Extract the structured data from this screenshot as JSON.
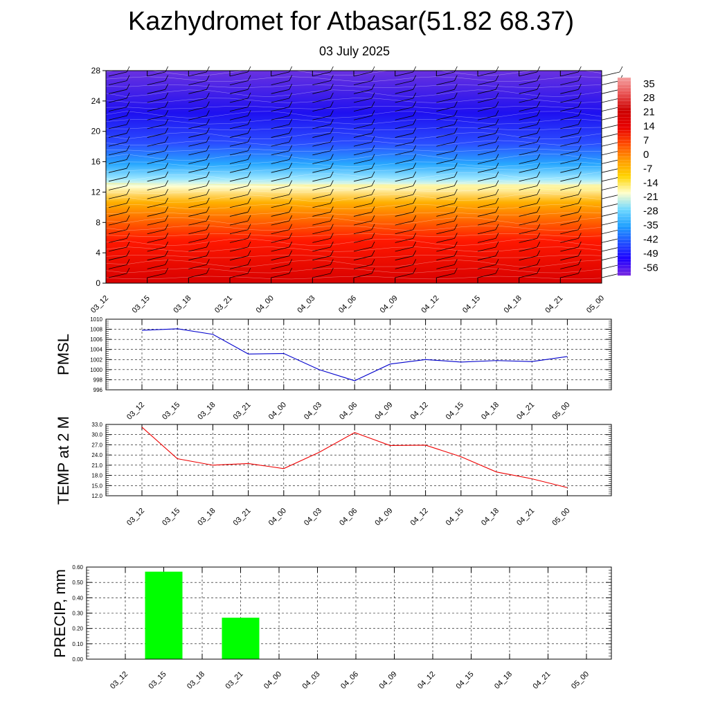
{
  "header": {
    "title": "Kazhydromet for Atbasar(51.82 68.37)",
    "subtitle": "03 July 2025"
  },
  "time_labels": [
    "03_12",
    "03_15",
    "03_18",
    "03_21",
    "04_00",
    "04_03",
    "04_06",
    "04_09",
    "04_12",
    "04_15",
    "04_18",
    "04_21",
    "05_00"
  ],
  "chart_data": [
    {
      "type": "heatmap",
      "title": "",
      "xlabel": "",
      "ylabel": "",
      "x": [
        "03_12",
        "03_15",
        "03_18",
        "03_21",
        "04_00",
        "04_03",
        "04_06",
        "04_09",
        "04_12",
        "04_15",
        "04_18",
        "04_21",
        "05_00"
      ],
      "y_ticks": [
        0,
        4,
        8,
        12,
        16,
        20,
        24,
        28
      ],
      "ylim": [
        0,
        28
      ],
      "colorbar": {
        "ticks": [
          35,
          28,
          21,
          14,
          7,
          0,
          -7,
          -14,
          -21,
          -28,
          -35,
          -42,
          -49,
          -56
        ],
        "range": [
          -60,
          38
        ],
        "colors": [
          "#7a2be0",
          "#1f00ff",
          "#2050ff",
          "#1fa0ff",
          "#6fd8ff",
          "#ffffcc",
          "#ffd400",
          "#ff9a00",
          "#ff4a00",
          "#e80000",
          "#cc0000",
          "#e85050",
          "#f4a0a0"
        ]
      },
      "freezing_level_km": {
        "x": [
          "03_12",
          "05_00"
        ],
        "values": [
          13.2,
          12.0
        ]
      },
      "wind_barbs": true
    },
    {
      "type": "line",
      "ylabel": "PMSL",
      "categories": [
        "03_12",
        "03_15",
        "03_18",
        "03_21",
        "04_00",
        "04_03",
        "04_06",
        "04_09",
        "04_12",
        "04_15",
        "04_18",
        "04_21",
        "05_00"
      ],
      "series": [
        {
          "values": [
            1007.8,
            1008.1,
            1007.0,
            1003.1,
            1003.2,
            1000.0,
            997.8,
            1001.1,
            1002.0,
            1001.5,
            1001.8,
            1001.6,
            1002.6
          ],
          "color": "#0000cc"
        }
      ],
      "ylim": [
        996,
        1010
      ],
      "yticks": [
        996,
        998,
        1000,
        1002,
        1004,
        1006,
        1008,
        1010
      ],
      "ytick_labels": [
        "996",
        "998",
        "1000",
        "1002",
        "1004",
        "1006",
        "1008",
        "1010"
      ],
      "grid": true
    },
    {
      "type": "line",
      "ylabel": "TEMP at 2 M",
      "categories": [
        "03_12",
        "03_15",
        "03_18",
        "03_21",
        "04_00",
        "04_03",
        "04_06",
        "04_09",
        "04_12",
        "04_15",
        "04_18",
        "04_21",
        "05_00"
      ],
      "series": [
        {
          "values": [
            32.2,
            22.9,
            21.0,
            21.5,
            20.0,
            24.8,
            30.6,
            26.8,
            26.9,
            23.5,
            19.0,
            17.0,
            14.4
          ],
          "color": "#ee0000"
        }
      ],
      "ylim": [
        12,
        33
      ],
      "yticks": [
        12,
        15,
        18,
        21,
        24,
        27,
        30,
        33
      ],
      "ytick_labels": [
        "12.0",
        "15.0",
        "18.0",
        "21.0",
        "24.0",
        "27.0",
        "30.0",
        "33.0"
      ],
      "grid": true
    },
    {
      "type": "bar",
      "ylabel": "PRECIP, mm",
      "categories": [
        "03_12",
        "03_15",
        "03_18",
        "03_21",
        "04_00",
        "04_03",
        "04_06",
        "04_09",
        "04_12",
        "04_15",
        "04_18",
        "04_21",
        "05_00"
      ],
      "values": [
        0,
        0.57,
        0,
        0.27,
        0,
        0,
        0,
        0,
        0,
        0,
        0,
        0,
        0
      ],
      "color": "#00ff00",
      "ylim": [
        0,
        0.6
      ],
      "yticks": [
        0,
        0.1,
        0.2,
        0.3,
        0.4,
        0.5,
        0.6
      ],
      "ytick_labels": [
        "0.00",
        "0.10",
        "0.20",
        "0.30",
        "0.40",
        "0.50",
        "0.60"
      ],
      "grid": true
    }
  ]
}
